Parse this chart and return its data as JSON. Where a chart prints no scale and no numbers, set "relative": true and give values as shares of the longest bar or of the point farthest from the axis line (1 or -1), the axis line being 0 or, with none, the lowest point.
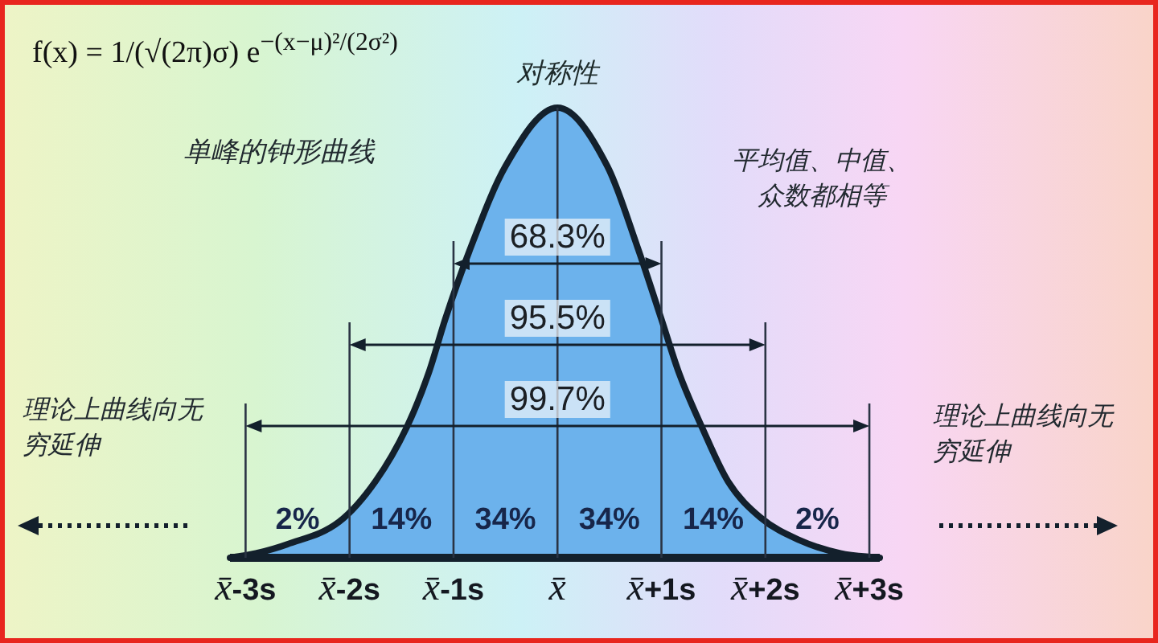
{
  "chart_data": {
    "type": "area",
    "relative": true,
    "title": "f(x) = 1/(√(2π)σ) e$^{−(x−μ)²/(2σ²)}$",
    "x": [
      -3.15,
      -2.9,
      -2.6,
      -2.1,
      -1.75,
      -1.45,
      -1.24,
      -1.08,
      -0.85,
      -0.5,
      0,
      0.48,
      0.77,
      1.0,
      1.17,
      1.39,
      1.64,
      1.95,
      2.32,
      2.72,
      3.1
    ],
    "values": [
      0,
      0.01,
      0.03,
      0.08,
      0.17,
      0.29,
      0.41,
      0.53,
      0.68,
      0.87,
      1,
      0.87,
      0.69,
      0.53,
      0.41,
      0.29,
      0.17,
      0.09,
      0.04,
      0.01,
      0
    ],
    "color": "#6cb2ec",
    "xlim": [
      -3.15,
      3.1
    ],
    "xticks": [
      {
        "value": -3,
        "label": "*x̄*-3s"
      },
      {
        "value": -2,
        "label": "*x̄*-2s"
      },
      {
        "value": -1,
        "label": "*x̄*-1s"
      },
      {
        "value": 0,
        "label": "*x̄*"
      },
      {
        "value": 1,
        "label": "*x̄*+1s"
      },
      {
        "value": 2,
        "label": "*x̄*+2s"
      },
      {
        "value": 3,
        "label": "*x̄*+3s"
      }
    ],
    "ref_lines": [
      {
        "axis": "x",
        "value": -3,
        "color": "#2a3444"
      },
      {
        "axis": "x",
        "value": -2,
        "color": "#2a3444"
      },
      {
        "axis": "x",
        "value": -1,
        "color": "#2a3444"
      },
      {
        "axis": "x",
        "value": 0,
        "color": "#2a3444"
      },
      {
        "axis": "x",
        "value": 1,
        "color": "#2a3444"
      },
      {
        "axis": "x",
        "value": 2,
        "color": "#2a3444"
      },
      {
        "axis": "x",
        "value": 3,
        "color": "#2a3444"
      }
    ],
    "annotations": [
      {
        "text": "对称性",
        "x": 0,
        "y": 1
      },
      "单峰的钟形曲线",
      "平均值、中值、众数都相等",
      "68.3%",
      "95.5%",
      "99.7%",
      "理论上曲线向无穷延伸",
      "理论上曲线向无穷延伸",
      "2%",
      "14%",
      "34%",
      "34%",
      "14%",
      "2%"
    ]
  }
}
